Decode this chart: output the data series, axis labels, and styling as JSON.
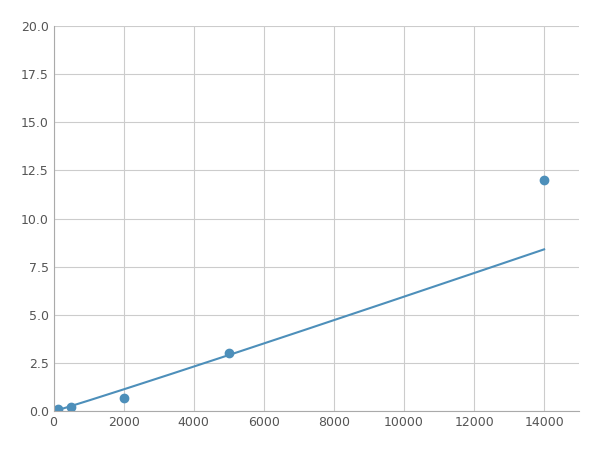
{
  "x_data": [
    125,
    500,
    2000,
    5000,
    14000
  ],
  "y_data": [
    0.1,
    0.2,
    0.7,
    3.0,
    12.0
  ],
  "line_color": "#4d8fba",
  "marker_color": "#4d8fba",
  "marker_size": 6,
  "linewidth": 1.5,
  "xlim": [
    0,
    15000
  ],
  "ylim": [
    0,
    20.0
  ],
  "xticks": [
    0,
    2000,
    4000,
    6000,
    8000,
    10000,
    12000,
    14000
  ],
  "yticks": [
    0.0,
    2.5,
    5.0,
    7.5,
    10.0,
    12.5,
    15.0,
    17.5,
    20.0
  ],
  "grid": true,
  "grid_color": "#cccccc",
  "background_color": "#ffffff",
  "figure_background": "#ffffff"
}
